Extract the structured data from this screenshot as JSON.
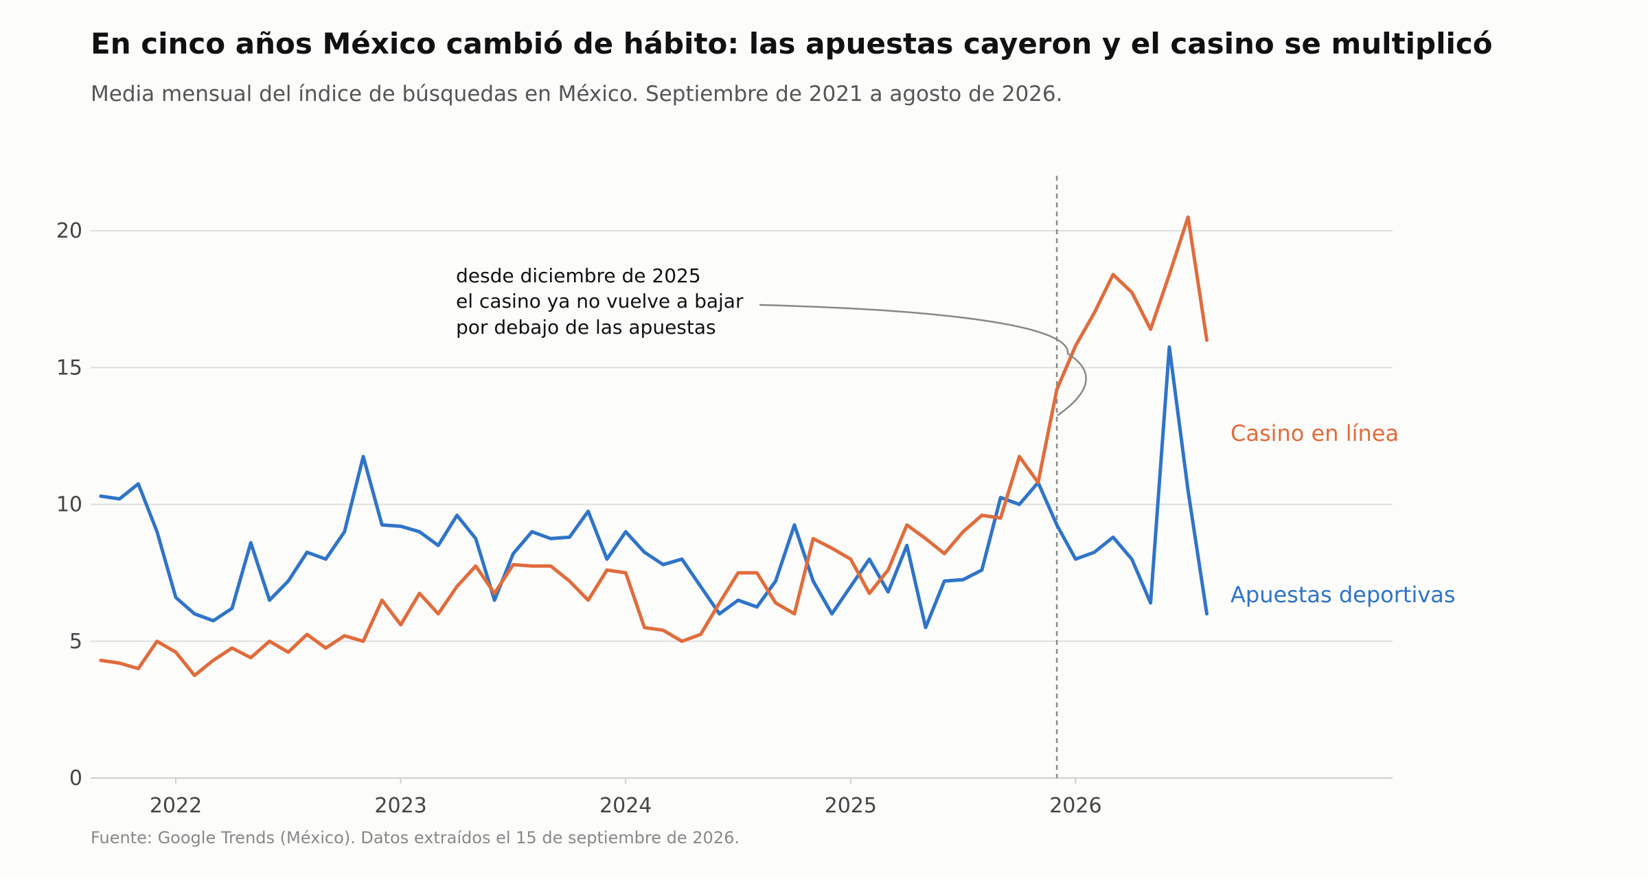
{
  "title": "En cinco años México cambió de hábito: las apuestas cayeron y el casino se multiplicó",
  "subtitle": "Media mensual del índice de búsquedas en México. Septiembre de 2021 a agosto de 2026.",
  "source": "Fuente: Google Trends (México). Datos extraídos el 15 de septiembre de 2026.",
  "annotation": {
    "lines": [
      "desde diciembre de 2025",
      "el casino ya no vuelve a bajar",
      "por debajo de las apuestas"
    ],
    "marker_date": "2025-12"
  },
  "chart_data": {
    "type": "line",
    "x_start": "2021-09",
    "x_end": "2026-08",
    "x": [
      "2021-09",
      "2021-10",
      "2021-11",
      "2021-12",
      "2022-01",
      "2022-02",
      "2022-03",
      "2022-04",
      "2022-05",
      "2022-06",
      "2022-07",
      "2022-08",
      "2022-09",
      "2022-10",
      "2022-11",
      "2022-12",
      "2023-01",
      "2023-02",
      "2023-03",
      "2023-04",
      "2023-05",
      "2023-06",
      "2023-07",
      "2023-08",
      "2023-09",
      "2023-10",
      "2023-11",
      "2023-12",
      "2024-01",
      "2024-02",
      "2024-03",
      "2024-04",
      "2024-05",
      "2024-06",
      "2024-07",
      "2024-08",
      "2024-09",
      "2024-10",
      "2024-11",
      "2024-12",
      "2025-01",
      "2025-02",
      "2025-03",
      "2025-04",
      "2025-05",
      "2025-06",
      "2025-07",
      "2025-08",
      "2025-09",
      "2025-10",
      "2025-11",
      "2025-12",
      "2026-01",
      "2026-02",
      "2026-03",
      "2026-04",
      "2026-05",
      "2026-06",
      "2026-07",
      "2026-08"
    ],
    "series": [
      {
        "name": "Apuestas deportivas",
        "color": "#2f74c8",
        "values": [
          10.3,
          10.2,
          10.75,
          9.0,
          6.6,
          6.0,
          5.75,
          6.2,
          8.6,
          6.5,
          7.2,
          8.25,
          8.0,
          9.0,
          11.75,
          9.25,
          9.2,
          9.0,
          8.5,
          9.6,
          8.75,
          6.5,
          8.2,
          9.0,
          8.75,
          8.8,
          9.75,
          8.0,
          9.0,
          8.25,
          7.8,
          8.0,
          7.0,
          6.0,
          6.5,
          6.25,
          7.2,
          9.25,
          7.2,
          6.0,
          7.0,
          8.0,
          6.8,
          8.5,
          5.5,
          7.2,
          7.25,
          7.6,
          10.25,
          10.0,
          10.8,
          9.25,
          8.0,
          8.25,
          8.8,
          8.0,
          6.4,
          15.75,
          10.5,
          6.0
        ]
      },
      {
        "name": "Casino en línea",
        "color": "#e06c3c",
        "values": [
          4.3,
          4.2,
          4.0,
          5.0,
          4.6,
          3.75,
          4.3,
          4.75,
          4.4,
          5.0,
          4.6,
          5.25,
          4.75,
          5.2,
          5.0,
          6.5,
          5.6,
          6.75,
          6.0,
          7.0,
          7.75,
          6.75,
          7.8,
          7.75,
          7.75,
          7.2,
          6.5,
          7.6,
          7.5,
          5.5,
          5.4,
          5.0,
          5.25,
          6.4,
          7.5,
          7.5,
          6.4,
          6.0,
          8.75,
          8.4,
          8.0,
          6.75,
          7.6,
          9.25,
          8.75,
          8.2,
          9.0,
          9.6,
          9.5,
          11.75,
          10.8,
          14.2,
          15.8,
          17.0,
          18.4,
          17.75,
          16.4,
          18.4,
          20.5,
          16.0
        ]
      }
    ],
    "ylim": [
      0,
      22
    ],
    "yticks": [
      0,
      5,
      10,
      15,
      20
    ],
    "xticks": [
      "2022",
      "2023",
      "2024",
      "2025",
      "2026"
    ],
    "grid": "horizontal",
    "legend": "direct labels at line ends"
  }
}
